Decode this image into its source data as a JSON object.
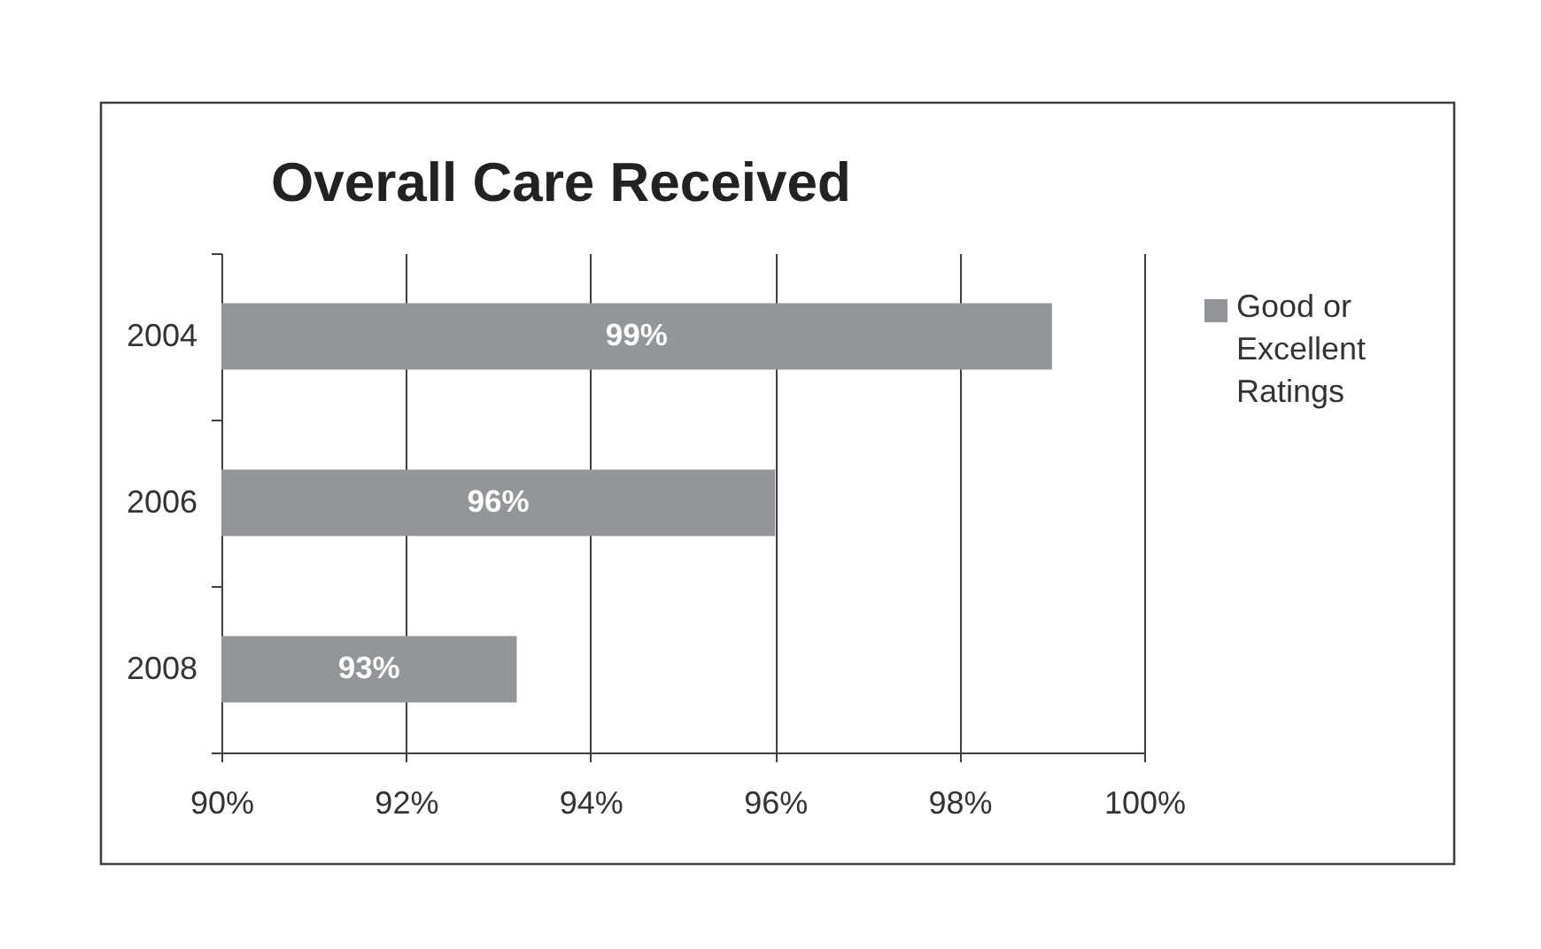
{
  "chart_data": {
    "type": "bar",
    "orientation": "horizontal",
    "title": "Overall Care Received",
    "categories": [
      "2004",
      "2006",
      "2008"
    ],
    "series": [
      {
        "name": "Good or Excellent Ratings",
        "color": "#939598",
        "values": [
          99,
          96,
          93.2
        ],
        "value_labels": [
          "99%",
          "96%",
          "93%"
        ]
      }
    ],
    "xlim": [
      90,
      100
    ],
    "xticks": [
      {
        "value": 90,
        "label": "90%"
      },
      {
        "value": 92,
        "label": "92%"
      },
      {
        "value": 94,
        "label": "94%"
      },
      {
        "value": 96,
        "label": "96%"
      },
      {
        "value": 98,
        "label": "98%"
      },
      {
        "value": 100,
        "label": "100%"
      }
    ],
    "grid": "x",
    "legend": "right"
  }
}
